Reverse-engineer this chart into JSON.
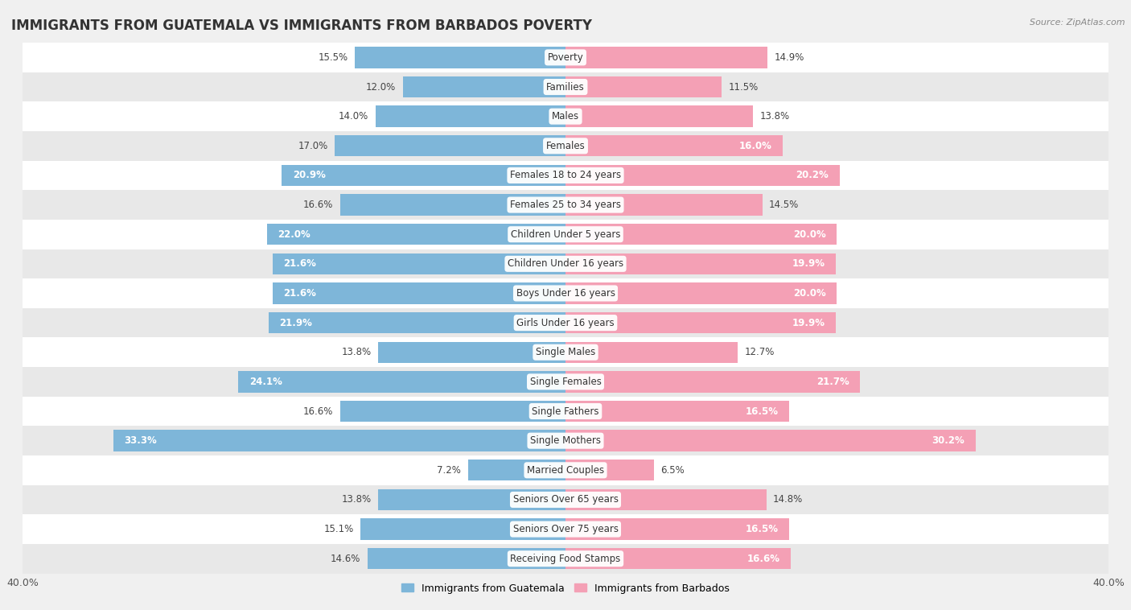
{
  "title": "IMMIGRANTS FROM GUATEMALA VS IMMIGRANTS FROM BARBADOS POVERTY",
  "source": "Source: ZipAtlas.com",
  "categories": [
    "Poverty",
    "Families",
    "Males",
    "Females",
    "Females 18 to 24 years",
    "Females 25 to 34 years",
    "Children Under 5 years",
    "Children Under 16 years",
    "Boys Under 16 years",
    "Girls Under 16 years",
    "Single Males",
    "Single Females",
    "Single Fathers",
    "Single Mothers",
    "Married Couples",
    "Seniors Over 65 years",
    "Seniors Over 75 years",
    "Receiving Food Stamps"
  ],
  "guatemala_values": [
    15.5,
    12.0,
    14.0,
    17.0,
    20.9,
    16.6,
    22.0,
    21.6,
    21.6,
    21.9,
    13.8,
    24.1,
    16.6,
    33.3,
    7.2,
    13.8,
    15.1,
    14.6
  ],
  "barbados_values": [
    14.9,
    11.5,
    13.8,
    16.0,
    20.2,
    14.5,
    20.0,
    19.9,
    20.0,
    19.9,
    12.7,
    21.7,
    16.5,
    30.2,
    6.5,
    14.8,
    16.5,
    16.6
  ],
  "guatemala_color": "#7eb6d9",
  "barbados_color": "#f4a0b5",
  "guatemala_label": "Immigrants from Guatemala",
  "barbados_label": "Immigrants from Barbados",
  "xlim": 40.0,
  "bar_height": 0.72,
  "background_color": "#f0f0f0",
  "row_bg_white": "#ffffff",
  "row_bg_gray": "#e8e8e8",
  "title_fontsize": 12,
  "label_fontsize": 8.5,
  "value_fontsize": 8.5,
  "legend_fontsize": 9,
  "inside_threshold_g": 18.0,
  "inside_threshold_b": 15.0
}
